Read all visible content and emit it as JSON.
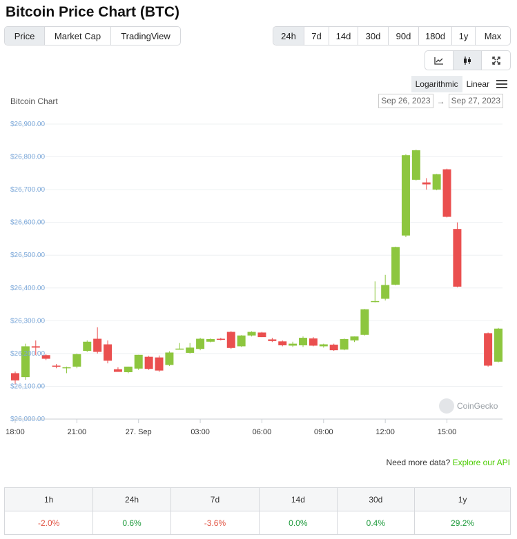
{
  "page": {
    "title": "Bitcoin Price Chart (BTC)"
  },
  "view_tabs": [
    {
      "label": "Price",
      "active": true
    },
    {
      "label": "Market Cap",
      "active": false
    },
    {
      "label": "TradingView",
      "active": false
    }
  ],
  "range_tabs": [
    {
      "label": "24h",
      "active": true
    },
    {
      "label": "7d",
      "active": false
    },
    {
      "label": "14d",
      "active": false
    },
    {
      "label": "30d",
      "active": false
    },
    {
      "label": "90d",
      "active": false
    },
    {
      "label": "180d",
      "active": false
    },
    {
      "label": "1y",
      "active": false
    },
    {
      "label": "Max",
      "active": false
    }
  ],
  "tool_buttons": [
    {
      "icon": "line-chart-icon",
      "active": false
    },
    {
      "icon": "candlestick-icon",
      "active": true
    },
    {
      "icon": "fullscreen-icon",
      "active": false
    }
  ],
  "scale": {
    "logarithmic_label": "Logarithmic",
    "linear_label": "Linear",
    "active": "Logarithmic"
  },
  "chart_label": "Bitcoin Chart",
  "date_range": {
    "from": "Sep 26, 2023",
    "to": "Sep 27, 2023",
    "arrow": "→"
  },
  "watermark": "CoinGecko",
  "chart_data": {
    "type": "candlestick",
    "title": "",
    "y_ticks": [
      "$26,000.00",
      "$26,100.00",
      "$26,200.00",
      "$26,300.00",
      "$26,400.00",
      "$26,500.00",
      "$26,600.00",
      "$26,700.00",
      "$26,800.00",
      "$26,900.00"
    ],
    "y_tick_values": [
      26000,
      26100,
      26200,
      26300,
      26400,
      26500,
      26600,
      26700,
      26800,
      26900
    ],
    "ylim": [
      26000,
      26900
    ],
    "x_ticks": [
      "18:00",
      "21:00",
      "27. Sep",
      "03:00",
      "06:00",
      "09:00",
      "12:00",
      "15:00"
    ],
    "x_tick_hours": [
      0,
      3,
      6,
      9,
      12,
      15,
      18,
      21
    ],
    "x_range_hours": [
      0,
      23.5
    ],
    "up_color": "#8dc63f",
    "down_color": "#ea4f4f",
    "grid": true,
    "candles": [
      {
        "t": 0.0,
        "o": 26140,
        "h": 26145,
        "l": 26105,
        "c": 26118
      },
      {
        "t": 0.5,
        "o": 26128,
        "h": 26230,
        "l": 26120,
        "c": 26222
      },
      {
        "t": 1.0,
        "o": 26222,
        "h": 26240,
        "l": 26195,
        "c": 26218
      },
      {
        "t": 1.5,
        "o": 26195,
        "h": 26198,
        "l": 26180,
        "c": 26184
      },
      {
        "t": 2.0,
        "o": 26163,
        "h": 26168,
        "l": 26155,
        "c": 26160
      },
      {
        "t": 2.5,
        "o": 26155,
        "h": 26160,
        "l": 26140,
        "c": 26158
      },
      {
        "t": 3.0,
        "o": 26160,
        "h": 26200,
        "l": 26155,
        "c": 26198
      },
      {
        "t": 3.5,
        "o": 26208,
        "h": 26240,
        "l": 26205,
        "c": 26236
      },
      {
        "t": 4.0,
        "o": 26245,
        "h": 26280,
        "l": 26200,
        "c": 26205
      },
      {
        "t": 4.5,
        "o": 26228,
        "h": 26240,
        "l": 26170,
        "c": 26178
      },
      {
        "t": 5.0,
        "o": 26152,
        "h": 26158,
        "l": 26144,
        "c": 26144
      },
      {
        "t": 5.5,
        "o": 26143,
        "h": 26160,
        "l": 26140,
        "c": 26160
      },
      {
        "t": 6.0,
        "o": 26154,
        "h": 26196,
        "l": 26150,
        "c": 26196
      },
      {
        "t": 6.5,
        "o": 26190,
        "h": 26193,
        "l": 26150,
        "c": 26153
      },
      {
        "t": 7.0,
        "o": 26188,
        "h": 26194,
        "l": 26144,
        "c": 26148
      },
      {
        "t": 7.5,
        "o": 26165,
        "h": 26207,
        "l": 26162,
        "c": 26203
      },
      {
        "t": 8.0,
        "o": 26214,
        "h": 26232,
        "l": 26212,
        "c": 26215
      },
      {
        "t": 8.5,
        "o": 26202,
        "h": 26232,
        "l": 26200,
        "c": 26218
      },
      {
        "t": 9.0,
        "o": 26214,
        "h": 26248,
        "l": 26210,
        "c": 26245
      },
      {
        "t": 9.5,
        "o": 26236,
        "h": 26246,
        "l": 26234,
        "c": 26244
      },
      {
        "t": 10.0,
        "o": 26245,
        "h": 26248,
        "l": 26240,
        "c": 26244
      },
      {
        "t": 10.5,
        "o": 26266,
        "h": 26268,
        "l": 26214,
        "c": 26217
      },
      {
        "t": 11.0,
        "o": 26222,
        "h": 26256,
        "l": 26220,
        "c": 26255
      },
      {
        "t": 11.5,
        "o": 26255,
        "h": 26268,
        "l": 26252,
        "c": 26266
      },
      {
        "t": 12.0,
        "o": 26264,
        "h": 26266,
        "l": 26250,
        "c": 26250
      },
      {
        "t": 12.5,
        "o": 26243,
        "h": 26248,
        "l": 26235,
        "c": 26238
      },
      {
        "t": 13.0,
        "o": 26237,
        "h": 26240,
        "l": 26222,
        "c": 26225
      },
      {
        "t": 13.5,
        "o": 26224,
        "h": 26236,
        "l": 26220,
        "c": 26230
      },
      {
        "t": 14.0,
        "o": 26225,
        "h": 26252,
        "l": 26220,
        "c": 26248
      },
      {
        "t": 14.5,
        "o": 26246,
        "h": 26250,
        "l": 26222,
        "c": 26224
      },
      {
        "t": 15.0,
        "o": 26222,
        "h": 26230,
        "l": 26218,
        "c": 26228
      },
      {
        "t": 15.5,
        "o": 26227,
        "h": 26230,
        "l": 26208,
        "c": 26210
      },
      {
        "t": 16.0,
        "o": 26212,
        "h": 26246,
        "l": 26210,
        "c": 26244
      },
      {
        "t": 16.5,
        "o": 26240,
        "h": 26252,
        "l": 26235,
        "c": 26252
      },
      {
        "t": 17.0,
        "o": 26257,
        "h": 26336,
        "l": 26255,
        "c": 26335
      },
      {
        "t": 17.5,
        "o": 26358,
        "h": 26420,
        "l": 26356,
        "c": 26360
      },
      {
        "t": 18.0,
        "o": 26367,
        "h": 26440,
        "l": 26362,
        "c": 26409
      },
      {
        "t": 18.5,
        "o": 26410,
        "h": 26526,
        "l": 26408,
        "c": 26525
      },
      {
        "t": 19.0,
        "o": 26560,
        "h": 26808,
        "l": 26555,
        "c": 26805
      },
      {
        "t": 19.5,
        "o": 26730,
        "h": 26822,
        "l": 26728,
        "c": 26820
      },
      {
        "t": 20.0,
        "o": 26722,
        "h": 26735,
        "l": 26700,
        "c": 26716
      },
      {
        "t": 20.5,
        "o": 26700,
        "h": 26748,
        "l": 26698,
        "c": 26747
      },
      {
        "t": 21.0,
        "o": 26762,
        "h": 26764,
        "l": 26615,
        "c": 26617
      },
      {
        "t": 21.5,
        "o": 26580,
        "h": 26600,
        "l": 26402,
        "c": 26404
      },
      {
        "t": 23.0,
        "o": 26262,
        "h": 26264,
        "l": 26160,
        "c": 26163
      },
      {
        "t": 23.5,
        "o": 26175,
        "h": 26278,
        "l": 26173,
        "c": 26276
      }
    ]
  },
  "more_data": {
    "text": "Need more data?",
    "link": "Explore our API"
  },
  "performance": {
    "headers": [
      "1h",
      "24h",
      "7d",
      "14d",
      "30d",
      "1y"
    ],
    "values": [
      "-2.0%",
      "0.6%",
      "-3.6%",
      "0.0%",
      "0.4%",
      "29.2%"
    ],
    "signs": [
      "neg",
      "pos",
      "neg",
      "pos",
      "pos",
      "pos"
    ]
  }
}
